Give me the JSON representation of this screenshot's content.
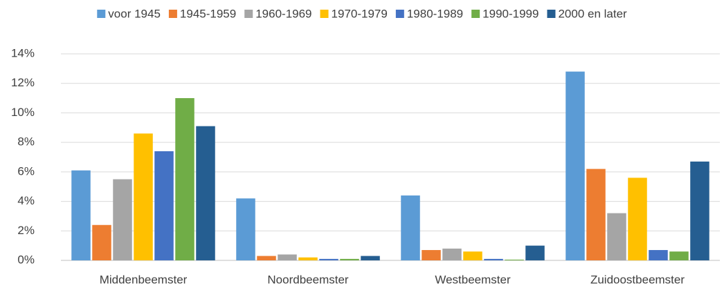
{
  "chart_data": {
    "type": "bar",
    "categories": [
      "Middenbeemster",
      "Noordbeemster",
      "Westbeemster",
      "Zuidoostbeemster"
    ],
    "series": [
      {
        "name": "voor 1945",
        "color": "#5b9bd5",
        "values": [
          6.1,
          4.2,
          4.4,
          12.8
        ]
      },
      {
        "name": "1945-1959",
        "color": "#ed7d31",
        "values": [
          2.4,
          0.3,
          0.7,
          6.2
        ]
      },
      {
        "name": "1960-1969",
        "color": "#a5a5a5",
        "values": [
          5.5,
          0.4,
          0.8,
          3.2
        ]
      },
      {
        "name": "1970-1979",
        "color": "#ffc000",
        "values": [
          8.6,
          0.2,
          0.6,
          5.6
        ]
      },
      {
        "name": "1980-1989",
        "color": "#4472c4",
        "values": [
          7.4,
          0.1,
          0.1,
          0.7
        ]
      },
      {
        "name": "1990-1999",
        "color": "#70ad47",
        "values": [
          11.0,
          0.1,
          0.05,
          0.6
        ]
      },
      {
        "name": "2000 en later",
        "color": "#255e91",
        "values": [
          9.1,
          0.3,
          1.0,
          6.7
        ]
      }
    ],
    "ylim": [
      0,
      14
    ],
    "yticks": [
      {
        "value": 0,
        "label": "0%"
      },
      {
        "value": 2,
        "label": "2%"
      },
      {
        "value": 4,
        "label": "4%"
      },
      {
        "value": 6,
        "label": "6%"
      },
      {
        "value": 8,
        "label": "8%"
      },
      {
        "value": 10,
        "label": "10%"
      },
      {
        "value": 12,
        "label": "12%"
      },
      {
        "value": 14,
        "label": "14%"
      }
    ],
    "grid": true,
    "legend": "top"
  }
}
